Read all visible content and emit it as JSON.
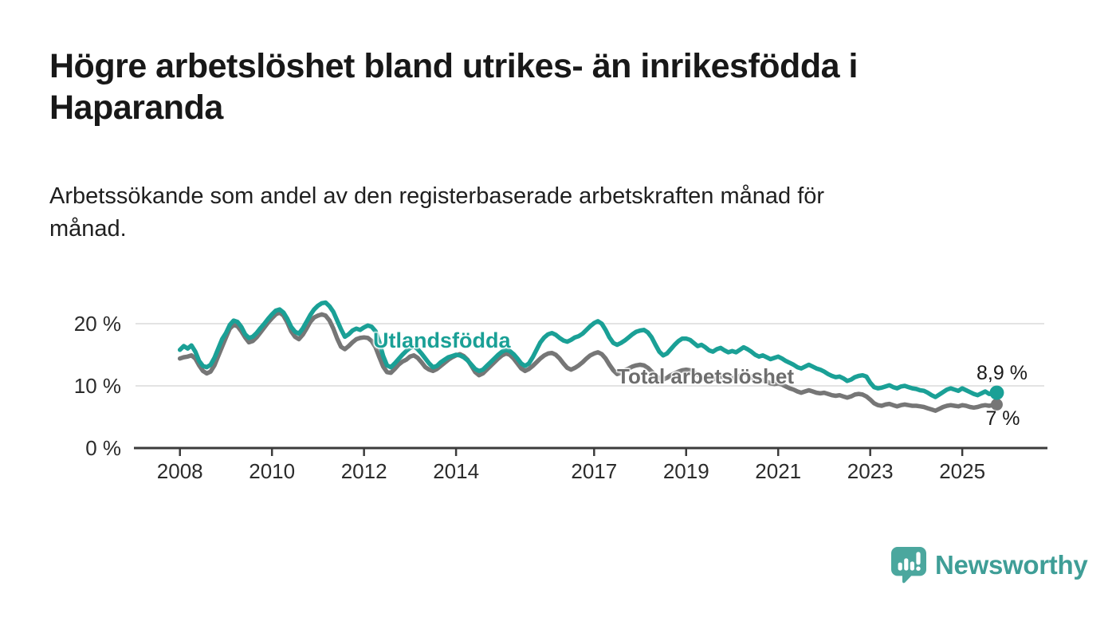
{
  "header": {
    "title": "Högre arbetslöshet bland utrikes- än inrikesfödda i\nHaparanda",
    "subtitle": "Arbetssökande som andel av den registerbaserade arbetskraften månad för\nmånad."
  },
  "chart_data": {
    "type": "line",
    "unit": "%",
    "x_start_year": 2008,
    "frequency": "monthly",
    "x_end": "2025-10",
    "grid": "horizontal",
    "legend_position": "inline-labels",
    "x_ticks": [
      {
        "year": 2008,
        "label": "2008"
      },
      {
        "year": 2010,
        "label": "2010"
      },
      {
        "year": 2012,
        "label": "2012"
      },
      {
        "year": 2014,
        "label": "2014"
      },
      {
        "year": 2017,
        "label": "2017"
      },
      {
        "year": 2019,
        "label": "2019"
      },
      {
        "year": 2021,
        "label": "2021"
      },
      {
        "year": 2023,
        "label": "2023"
      },
      {
        "year": 2025,
        "label": "2025"
      }
    ],
    "y_ticks": [
      {
        "value": 20,
        "label": "20 %"
      },
      {
        "value": 10,
        "label": "10 %"
      },
      {
        "value": 0,
        "label": "0 %"
      }
    ],
    "y_domain": [
      0,
      25
    ],
    "series": [
      {
        "name": "Utlandsfödda",
        "color": "#1aa096",
        "end_value": 8.9,
        "end_label": "8,9 %",
        "values": [
          15.8,
          16.4,
          16.0,
          16.5,
          15.5,
          14.0,
          13.2,
          13.0,
          13.4,
          14.5,
          16.0,
          17.5,
          18.5,
          19.8,
          20.5,
          20.3,
          19.5,
          18.3,
          17.7,
          17.9,
          18.5,
          19.3,
          20.0,
          20.8,
          21.5,
          22.1,
          22.3,
          21.8,
          20.8,
          19.5,
          18.7,
          18.4,
          19.2,
          20.3,
          21.4,
          22.3,
          22.9,
          23.3,
          23.4,
          22.8,
          21.9,
          20.5,
          19.1,
          17.9,
          18.3,
          18.9,
          19.2,
          19.0,
          19.4,
          19.7,
          19.5,
          18.8,
          17.0,
          14.8,
          13.3,
          13.0,
          13.6,
          14.3,
          15.0,
          15.6,
          16.1,
          16.4,
          15.9,
          15.2,
          14.4,
          13.6,
          13.0,
          13.2,
          13.8,
          14.2,
          14.6,
          14.8,
          15.0,
          14.9,
          14.6,
          14.1,
          13.4,
          12.7,
          12.4,
          12.6,
          13.2,
          13.8,
          14.4,
          15.0,
          15.5,
          15.8,
          15.6,
          15.1,
          14.4,
          13.6,
          13.2,
          13.6,
          14.6,
          15.8,
          17.0,
          17.8,
          18.3,
          18.5,
          18.2,
          17.7,
          17.3,
          17.1,
          17.4,
          17.8,
          18.0,
          18.4,
          19.0,
          19.6,
          20.1,
          20.4,
          20.0,
          19.0,
          17.8,
          16.9,
          16.6,
          16.9,
          17.3,
          17.8,
          18.3,
          18.7,
          18.9,
          19.0,
          18.6,
          17.8,
          16.6,
          15.5,
          14.9,
          15.2,
          15.9,
          16.6,
          17.2,
          17.6,
          17.6,
          17.4,
          16.9,
          16.4,
          16.6,
          16.2,
          15.7,
          15.5,
          15.9,
          16.1,
          15.7,
          15.4,
          15.6,
          15.4,
          15.8,
          16.2,
          15.9,
          15.5,
          15.0,
          14.7,
          14.9,
          14.6,
          14.3,
          14.5,
          14.7,
          14.4,
          14.0,
          13.7,
          13.4,
          13.0,
          12.8,
          13.1,
          13.4,
          13.1,
          12.8,
          12.6,
          12.3,
          11.9,
          11.6,
          11.4,
          11.5,
          11.2,
          10.8,
          11.0,
          11.4,
          11.6,
          11.7,
          11.5,
          10.5,
          9.8,
          9.6,
          9.7,
          9.9,
          10.1,
          9.8,
          9.6,
          9.9,
          10.0,
          9.8,
          9.6,
          9.5,
          9.3,
          9.2,
          8.9,
          8.5,
          8.2,
          8.6,
          9.0,
          9.4,
          9.6,
          9.4,
          9.2,
          9.6,
          9.3,
          9.0,
          8.7,
          8.5,
          8.8,
          9.1,
          8.7,
          8.7,
          8.9
        ]
      },
      {
        "name": "Total arbetslöshet",
        "color": "#767676",
        "end_value": 7.0,
        "end_label": "7 %",
        "values": [
          14.4,
          14.6,
          14.7,
          14.9,
          14.4,
          13.3,
          12.4,
          12.0,
          12.3,
          13.3,
          14.8,
          16.3,
          17.8,
          19.2,
          19.8,
          19.6,
          18.8,
          17.8,
          17.0,
          17.2,
          17.8,
          18.6,
          19.4,
          20.2,
          20.9,
          21.5,
          21.8,
          21.3,
          20.2,
          18.8,
          17.9,
          17.5,
          18.2,
          19.2,
          20.3,
          21.0,
          21.3,
          21.5,
          21.3,
          20.5,
          19.2,
          17.6,
          16.3,
          15.9,
          16.4,
          17.0,
          17.5,
          17.7,
          17.8,
          17.7,
          17.2,
          16.2,
          14.6,
          13.1,
          12.2,
          12.1,
          12.7,
          13.4,
          13.9,
          14.2,
          14.7,
          14.9,
          14.5,
          13.8,
          13.0,
          12.6,
          12.4,
          12.7,
          13.2,
          13.7,
          14.2,
          14.6,
          14.9,
          15.1,
          14.8,
          14.2,
          13.2,
          12.2,
          11.7,
          12.0,
          12.6,
          13.2,
          13.8,
          14.4,
          14.9,
          15.2,
          15.0,
          14.4,
          13.6,
          12.8,
          12.4,
          12.7,
          13.2,
          13.8,
          14.4,
          14.9,
          15.2,
          15.3,
          15.0,
          14.4,
          13.6,
          12.9,
          12.6,
          12.9,
          13.3,
          13.8,
          14.4,
          14.9,
          15.2,
          15.4,
          15.1,
          14.4,
          13.4,
          12.5,
          11.9,
          12.1,
          12.5,
          12.8,
          13.1,
          13.3,
          13.4,
          13.3,
          12.9,
          12.3,
          11.7,
          11.2,
          11.0,
          11.3,
          11.7,
          12.0,
          12.3,
          12.5,
          12.6,
          12.5,
          12.2,
          11.8,
          11.4,
          11.0,
          10.8,
          11.0,
          11.3,
          11.5,
          11.4,
          11.2,
          11.3,
          11.2,
          11.6,
          12.0,
          11.8,
          11.4,
          11.0,
          10.8,
          10.9,
          10.7,
          10.4,
          10.3,
          10.4,
          10.2,
          9.9,
          9.6,
          9.4,
          9.1,
          8.9,
          9.1,
          9.3,
          9.1,
          8.9,
          8.8,
          8.9,
          8.7,
          8.5,
          8.4,
          8.5,
          8.3,
          8.1,
          8.3,
          8.6,
          8.7,
          8.6,
          8.3,
          7.8,
          7.2,
          6.9,
          6.8,
          7.0,
          7.1,
          6.9,
          6.7,
          6.9,
          7.0,
          6.9,
          6.8,
          6.8,
          6.7,
          6.6,
          6.4,
          6.2,
          6.0,
          6.3,
          6.6,
          6.8,
          6.9,
          6.8,
          6.7,
          6.9,
          6.8,
          6.6,
          6.5,
          6.6,
          6.8,
          6.9,
          6.8,
          6.9,
          7.0
        ]
      }
    ]
  },
  "footer": {
    "brand": "Newsworthy"
  },
  "colors": {
    "accent_teal": "#1aa096",
    "line_gray": "#767676",
    "series_label_gray": "#6d6d6d",
    "grid": "#dadada",
    "axis": "#3b3b3b",
    "tick_text": "#2b2b2b",
    "title_text": "#181818",
    "logo_teal": "#3f9e97",
    "logo_icon_teal": "#4ba79e"
  }
}
